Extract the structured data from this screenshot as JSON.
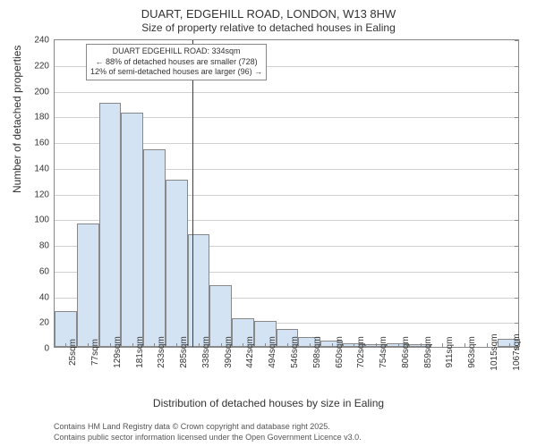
{
  "chart": {
    "type": "histogram",
    "title_main": "DUART, EDGEHILL ROAD, LONDON, W13 8HW",
    "title_sub": "Size of property relative to detached houses in Ealing",
    "title_fontsize": 13,
    "subtitle_fontsize": 12,
    "ylabel": "Number of detached properties",
    "xlabel": "Distribution of detached houses by size in Ealing",
    "label_fontsize": 12,
    "tick_fontsize": 10,
    "background_color": "#ffffff",
    "grid_color": "#d0d0d0",
    "border_color": "#888888",
    "bar_fill": "#d3e3f3",
    "bar_border": "#888888",
    "reference_line_color": "#cc0000",
    "ylim": [
      0,
      240
    ],
    "ytick_step": 20,
    "yticks": [
      0,
      20,
      40,
      60,
      80,
      100,
      120,
      140,
      160,
      180,
      200,
      220,
      240
    ],
    "x_categories": [
      "25sqm",
      "77sqm",
      "129sqm",
      "181sqm",
      "233sqm",
      "285sqm",
      "338sqm",
      "390sqm",
      "442sqm",
      "494sqm",
      "546sqm",
      "598sqm",
      "650sqm",
      "702sqm",
      "754sqm",
      "806sqm",
      "859sqm",
      "911sqm",
      "963sqm",
      "1015sqm",
      "1067sqm"
    ],
    "values": [
      28,
      96,
      190,
      182,
      154,
      130,
      88,
      48,
      22,
      20,
      14,
      8,
      5,
      3,
      2,
      3,
      2,
      0,
      0,
      0,
      6
    ],
    "reference_value": 334,
    "annotation": {
      "line1": "DUART EDGEHILL ROAD: 334sqm",
      "line2": "← 88% of detached houses are smaller (728)",
      "line3": "12% of semi-detached houses are larger (96) →",
      "fontsize": 9
    },
    "footer1": "Contains HM Land Registry data © Crown copyright and database right 2025.",
    "footer2": "Contains public sector information licensed under the Open Government Licence v3.0.",
    "footer_fontsize": 9
  }
}
